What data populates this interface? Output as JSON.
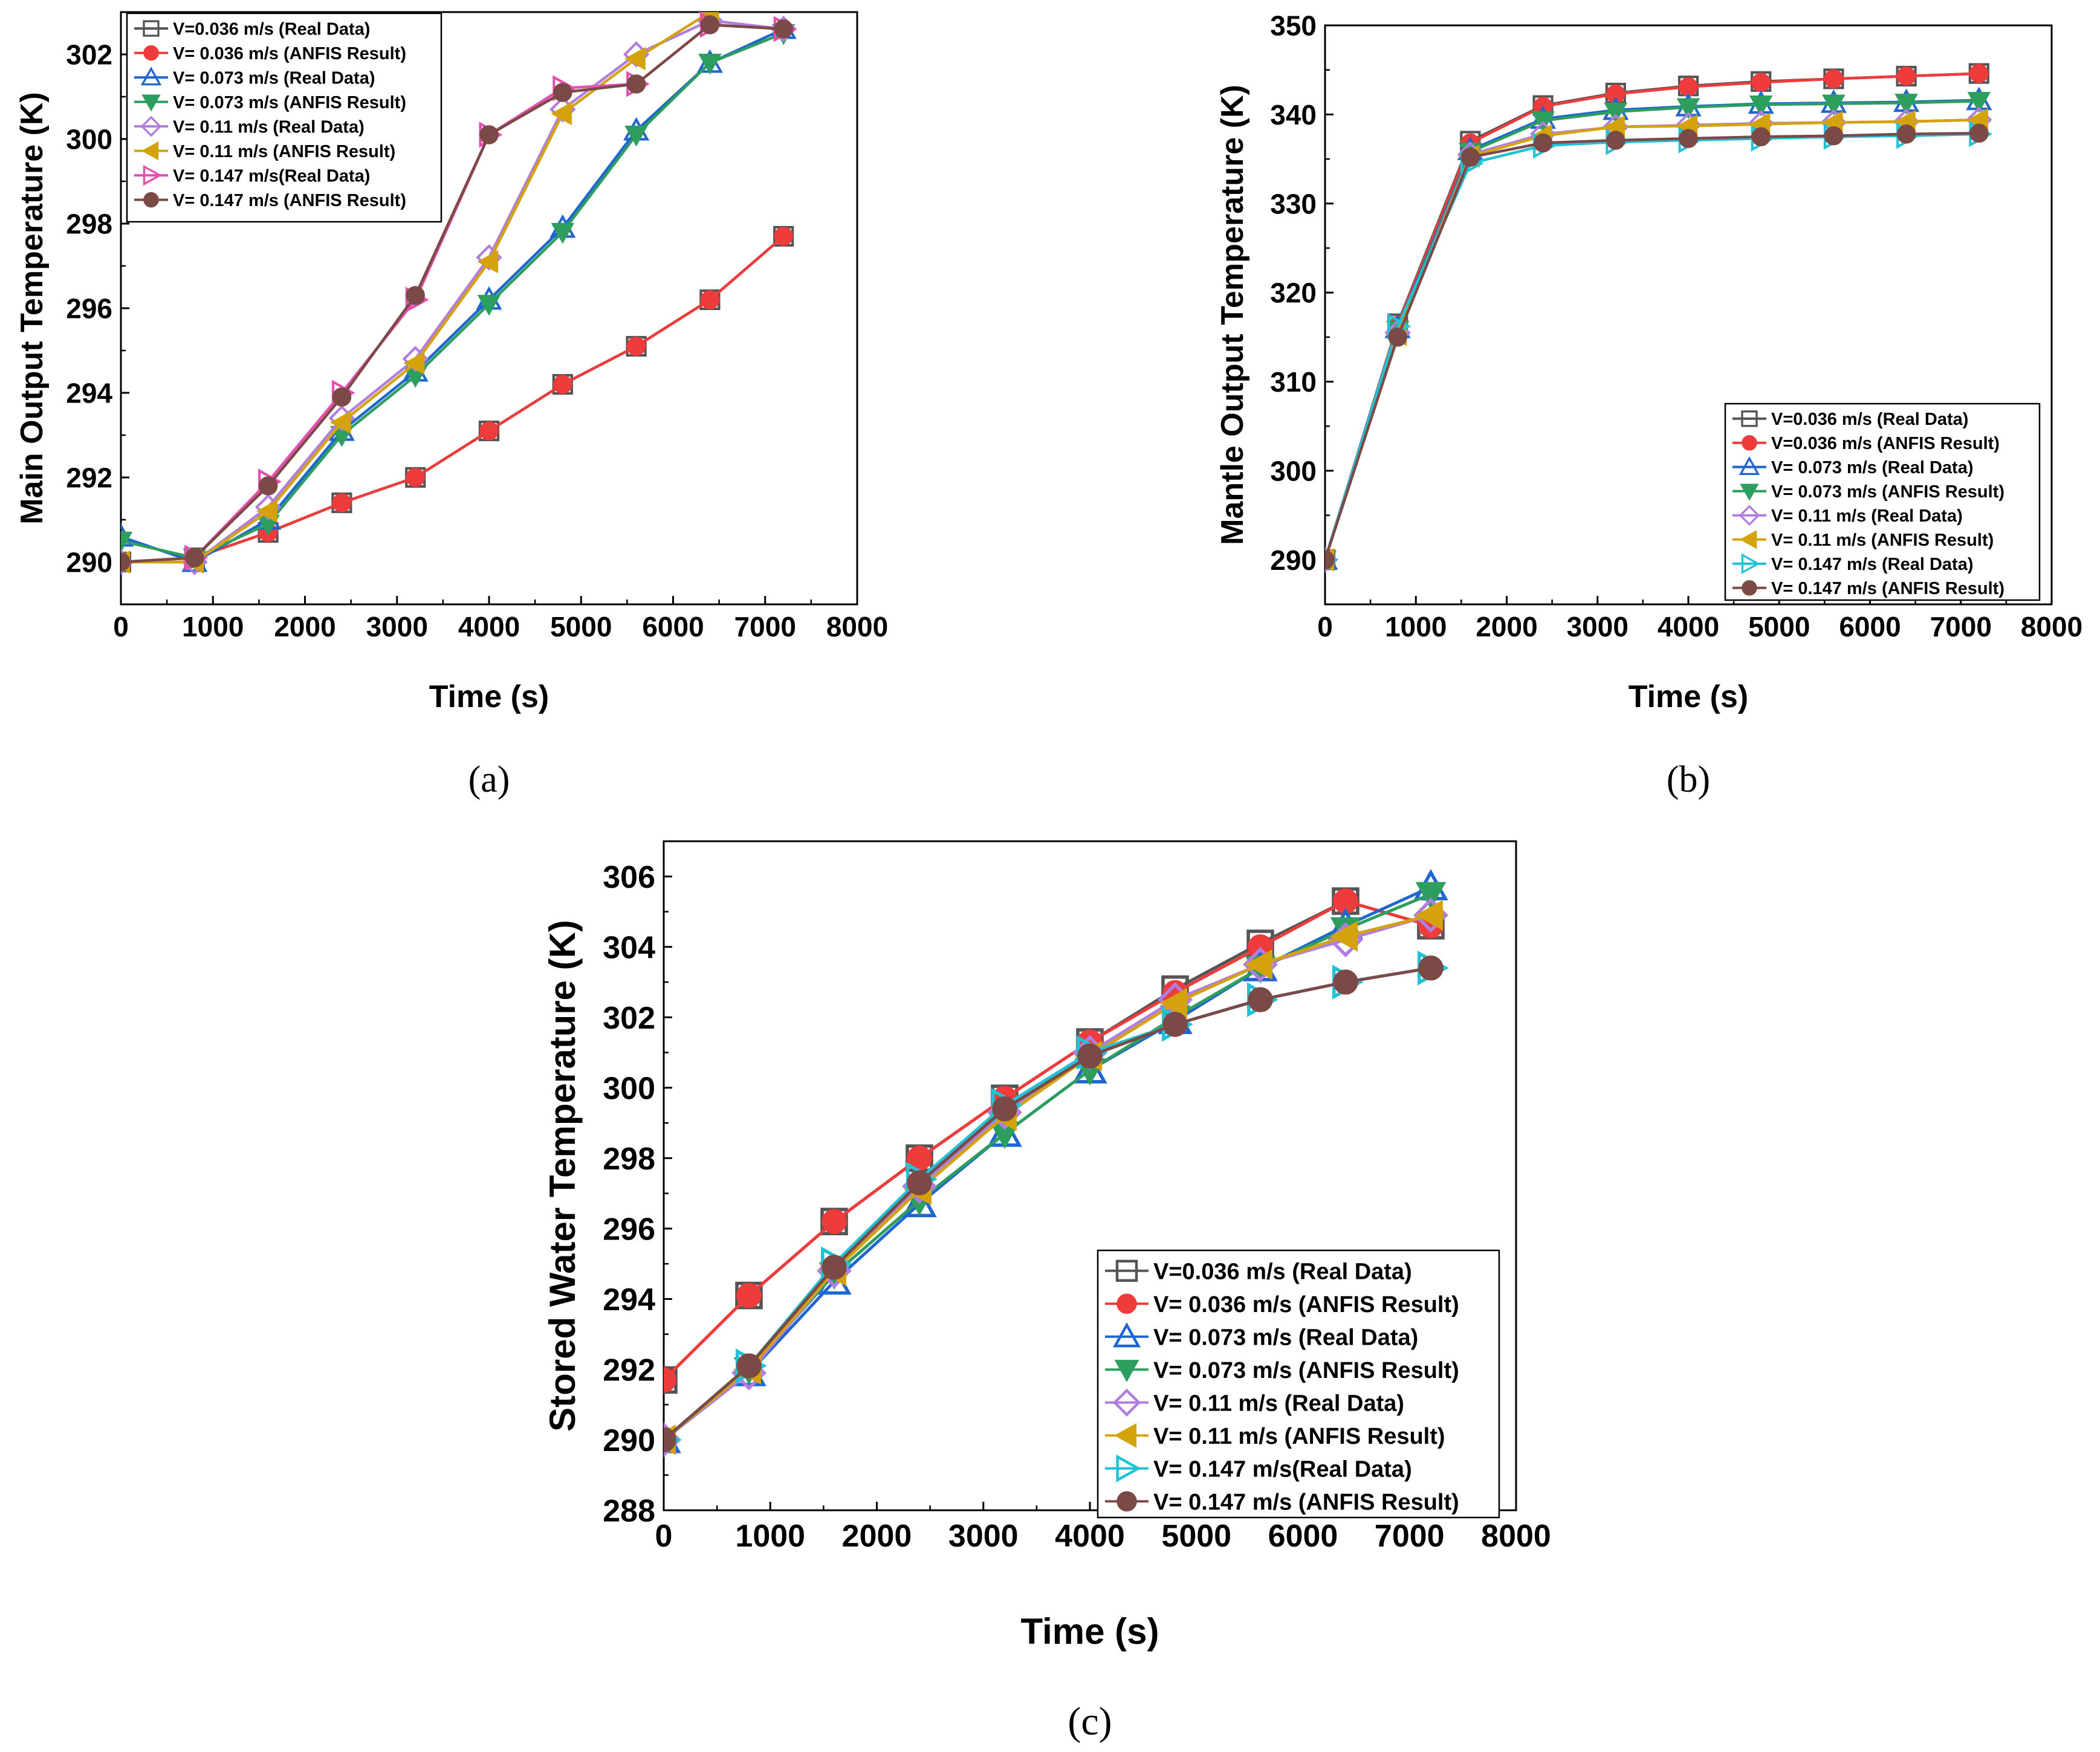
{
  "chart_data": [
    {
      "type": "line",
      "panel_label": "(a)",
      "xlabel": "Time (s)",
      "ylabel": "Main Output Temperature (K)",
      "xlim": [
        0,
        8000
      ],
      "ylim": [
        289,
        303
      ],
      "xticks": [
        "0",
        "1000",
        "2000",
        "3000",
        "4000",
        "5000",
        "6000",
        "7000",
        "8000"
      ],
      "yticks": [
        "290",
        "292",
        "294",
        "296",
        "298",
        "300",
        "302"
      ],
      "grid": false,
      "legend_placement": "top-left",
      "series": [
        {
          "name": "V=0.036 m/s (Real Data)",
          "color": "#555555",
          "marker": "square-open",
          "x": [
            0,
            800,
            1600,
            2400,
            3200,
            4000,
            4800,
            5600,
            6400,
            7200
          ],
          "y": [
            290.0,
            290.1,
            290.7,
            291.4,
            292.0,
            293.1,
            294.2,
            295.1,
            296.2,
            297.7
          ]
        },
        {
          "name": "V= 0.036 m/s (ANFIS Result)",
          "color": "#ee3b3b",
          "marker": "circle-filled",
          "x": [
            0,
            800,
            1600,
            2400,
            3200,
            4000,
            4800,
            5600,
            6400,
            7200
          ],
          "y": [
            290.0,
            290.1,
            290.7,
            291.4,
            292.0,
            293.1,
            294.2,
            295.1,
            296.2,
            297.7
          ]
        },
        {
          "name": "V= 0.073 m/s (Real Data)",
          "color": "#1f66d1",
          "marker": "triangle-up-open",
          "x": [
            0,
            800,
            1600,
            2400,
            3200,
            4000,
            4800,
            5600,
            6400,
            7200
          ],
          "y": [
            290.6,
            290.0,
            291.0,
            293.1,
            294.5,
            296.2,
            297.9,
            300.2,
            301.8,
            302.6
          ]
        },
        {
          "name": "V= 0.073 m/s (ANFIS Result)",
          "color": "#2e9e5e",
          "marker": "triangle-down-filled",
          "x": [
            0,
            800,
            1600,
            2400,
            3200,
            4000,
            4800,
            5600,
            6400,
            7200
          ],
          "y": [
            290.5,
            290.1,
            290.9,
            293.0,
            294.4,
            296.1,
            297.8,
            300.1,
            301.8,
            302.5
          ]
        },
        {
          "name": "V= 0.11 m/s (Real Data)",
          "color": "#b07ee0",
          "marker": "diamond-open",
          "x": [
            0,
            800,
            1600,
            2400,
            3200,
            4000,
            4800,
            5600,
            6400,
            7200
          ],
          "y": [
            290.0,
            290.0,
            291.3,
            293.4,
            294.8,
            297.2,
            300.7,
            302.0,
            302.8,
            302.6
          ]
        },
        {
          "name": "V= 0.11 m/s (ANFIS Result)",
          "color": "#d4a20a",
          "marker": "triangle-left-filled",
          "x": [
            0,
            800,
            1600,
            2400,
            3200,
            4000,
            4800,
            5600,
            6400
          ],
          "y": [
            290.0,
            290.0,
            291.2,
            293.3,
            294.7,
            297.1,
            300.6,
            301.9,
            303.0
          ]
        },
        {
          "name": "V= 0.147 m/s(Real Data)",
          "color": "#e64fb0",
          "marker": "triangle-right-open",
          "x": [
            0,
            800,
            1600,
            2400,
            3200,
            4000,
            4800,
            5600,
            6400,
            7200
          ],
          "y": [
            290.0,
            290.1,
            291.9,
            294.0,
            296.2,
            300.1,
            301.2,
            301.3,
            302.7,
            302.6
          ]
        },
        {
          "name": "V= 0.147 m/s (ANFIS Result)",
          "color": "#7b4a46",
          "marker": "circle-filled",
          "x": [
            0,
            800,
            1600,
            2400,
            3200,
            4000,
            4800,
            5600,
            6400,
            7200
          ],
          "y": [
            290.0,
            290.1,
            291.8,
            293.9,
            296.3,
            300.1,
            301.1,
            301.3,
            302.7,
            302.6
          ]
        }
      ]
    },
    {
      "type": "line",
      "panel_label": "(b)",
      "xlabel": "Time (s)",
      "ylabel": "Mantle Output Temperature (K)",
      "xlim": [
        0,
        8000
      ],
      "ylim": [
        285,
        350
      ],
      "xticks": [
        "0",
        "1000",
        "2000",
        "3000",
        "4000",
        "5000",
        "6000",
        "7000",
        "8000"
      ],
      "yticks": [
        "290",
        "300",
        "310",
        "320",
        "330",
        "340",
        "350"
      ],
      "grid": false,
      "legend_placement": "bottom-right",
      "series": [
        {
          "name": "V=0.036 m/s (Real Data)",
          "color": "#555555",
          "marker": "square-open",
          "x": [
            0,
            800,
            1600,
            2400,
            3200,
            4000,
            4800,
            5600,
            6400,
            7200
          ],
          "y": [
            290.0,
            316.5,
            337.0,
            341.0,
            342.4,
            343.2,
            343.7,
            344.0,
            344.3,
            344.6
          ]
        },
        {
          "name": "V=0.036 m/s (ANFIS Result)",
          "color": "#ee3b3b",
          "marker": "circle-filled",
          "x": [
            0,
            800,
            1600,
            2400,
            3200,
            4000,
            4800,
            5600,
            6400,
            7200
          ],
          "y": [
            290.0,
            316.3,
            336.8,
            340.9,
            342.3,
            343.1,
            343.6,
            344.0,
            344.3,
            344.6
          ]
        },
        {
          "name": "V= 0.073 m/s (Real Data)",
          "color": "#1f66d1",
          "marker": "triangle-up-open",
          "x": [
            0,
            800,
            1600,
            2400,
            3200,
            4000,
            4800,
            5600,
            6400,
            7200
          ],
          "y": [
            290.0,
            316.0,
            336.0,
            339.5,
            340.5,
            340.9,
            341.2,
            341.3,
            341.4,
            341.6
          ]
        },
        {
          "name": "V= 0.073 m/s (ANFIS Result)",
          "color": "#2e9e5e",
          "marker": "triangle-down-filled",
          "x": [
            0,
            800,
            1600,
            2400,
            3200,
            4000,
            4800,
            5600,
            6400,
            7200
          ],
          "y": [
            290.0,
            315.8,
            335.8,
            339.3,
            340.3,
            340.8,
            341.1,
            341.2,
            341.3,
            341.5
          ]
        },
        {
          "name": "V= 0.11 m/s (Real Data)",
          "color": "#b07ee0",
          "marker": "diamond-open",
          "x": [
            0,
            800,
            1600,
            2400,
            3200,
            4000,
            4800,
            5600,
            6400,
            7200
          ],
          "y": [
            290.0,
            315.5,
            335.5,
            337.8,
            338.6,
            338.8,
            339.0,
            339.1,
            339.2,
            339.4
          ]
        },
        {
          "name": "V= 0.11 m/s (ANFIS Result)",
          "color": "#d4a20a",
          "marker": "triangle-left-filled",
          "x": [
            0,
            800,
            1600,
            2400,
            3200,
            4000,
            4800,
            5600,
            6400,
            7200
          ],
          "y": [
            290.0,
            315.3,
            335.3,
            337.6,
            338.6,
            338.7,
            338.9,
            339.1,
            339.2,
            339.4
          ]
        },
        {
          "name": "V= 0.147 m/s (Real Data)",
          "color": "#22c2d6",
          "marker": "triangle-right-open",
          "x": [
            0,
            800,
            1600,
            2400,
            3200,
            4000,
            4800,
            5600,
            6400,
            7200
          ],
          "y": [
            290.0,
            316.2,
            334.5,
            336.5,
            336.9,
            337.1,
            337.3,
            337.5,
            337.6,
            337.8
          ]
        },
        {
          "name": "V= 0.147 m/s (ANFIS Result)",
          "color": "#7b4a46",
          "marker": "circle-filled",
          "x": [
            0,
            800,
            1600,
            2400,
            3200,
            4000,
            4800,
            5600,
            6400,
            7200
          ],
          "y": [
            290.0,
            315.0,
            335.2,
            336.8,
            337.1,
            337.3,
            337.5,
            337.6,
            337.8,
            337.9
          ]
        }
      ]
    },
    {
      "type": "line",
      "panel_label": "(c)",
      "xlabel": "Time (s)",
      "ylabel": "Stored Water Temperature (K)",
      "xlim": [
        0,
        8000
      ],
      "ylim": [
        288,
        307
      ],
      "xticks": [
        "0",
        "1000",
        "2000",
        "3000",
        "4000",
        "5000",
        "6000",
        "7000",
        "8000"
      ],
      "yticks": [
        "288",
        "290",
        "292",
        "294",
        "296",
        "298",
        "300",
        "302",
        "304",
        "306"
      ],
      "grid": false,
      "legend_placement": "bottom-right",
      "series": [
        {
          "name": "V=0.036 m/s (Real Data)",
          "color": "#555555",
          "marker": "square-open",
          "x": [
            0,
            800,
            1600,
            2400,
            3200,
            4000,
            4800,
            5600,
            6400,
            7200
          ],
          "y": [
            291.7,
            294.1,
            296.2,
            298.0,
            299.7,
            301.3,
            302.8,
            304.1,
            305.3,
            304.6
          ]
        },
        {
          "name": "V= 0.036 m/s (ANFIS Result)",
          "color": "#ee3b3b",
          "marker": "circle-filled",
          "x": [
            0,
            800,
            1600,
            2400,
            3200,
            4000,
            4800,
            5600,
            6400,
            7200
          ],
          "y": [
            291.7,
            294.1,
            296.2,
            298.0,
            299.7,
            301.3,
            302.7,
            304.0,
            305.3,
            304.6
          ]
        },
        {
          "name": "V= 0.073 m/s (Real Data)",
          "color": "#1f66d1",
          "marker": "triangle-up-open",
          "x": [
            0,
            800,
            1600,
            2400,
            3200,
            4000,
            4800,
            5600,
            6400,
            7200
          ],
          "y": [
            290.0,
            291.9,
            294.5,
            296.7,
            298.7,
            300.5,
            301.9,
            303.4,
            304.6,
            305.7
          ]
        },
        {
          "name": "V= 0.073 m/s (ANFIS Result)",
          "color": "#2e9e5e",
          "marker": "triangle-down-filled",
          "x": [
            0,
            800,
            1600,
            2400,
            3200,
            4000,
            4800,
            5600,
            6400,
            7200
          ],
          "y": [
            290.0,
            292.0,
            294.7,
            296.8,
            298.7,
            300.5,
            302.0,
            303.4,
            304.5,
            305.5
          ]
        },
        {
          "name": "V= 0.11 m/s (Real Data)",
          "color": "#b07ee0",
          "marker": "diamond-open",
          "x": [
            0,
            800,
            1600,
            2400,
            3200,
            4000,
            4800,
            5600,
            6400,
            7200
          ],
          "y": [
            290.0,
            291.9,
            294.8,
            297.2,
            299.3,
            301.0,
            302.5,
            303.5,
            304.2,
            304.9
          ]
        },
        {
          "name": "V= 0.11 m/s (ANFIS Result)",
          "color": "#d4a20a",
          "marker": "triangle-left-filled",
          "x": [
            0,
            800,
            1600,
            2400,
            3200,
            4000,
            4800,
            5600,
            6400,
            7200
          ],
          "y": [
            290.0,
            292.0,
            294.8,
            297.1,
            299.2,
            300.9,
            302.4,
            303.5,
            304.3,
            304.9
          ]
        },
        {
          "name": "V= 0.147 m/s(Real Data)",
          "color": "#22c2d6",
          "marker": "triangle-right-open",
          "x": [
            0,
            800,
            1600,
            2400,
            3200,
            4000,
            4800,
            5600,
            6400,
            7200
          ],
          "y": [
            290.0,
            292.1,
            295.0,
            297.4,
            299.5,
            301.0,
            301.8,
            302.5,
            303.0,
            303.4
          ]
        },
        {
          "name": "V= 0.147 m/s (ANFIS Result)",
          "color": "#7b4a46",
          "marker": "circle-filled",
          "x": [
            0,
            800,
            1600,
            2400,
            3200,
            4000,
            4800,
            5600,
            6400,
            7200
          ],
          "y": [
            290.0,
            292.1,
            294.9,
            297.3,
            299.4,
            300.9,
            301.8,
            302.5,
            303.0,
            303.4
          ]
        }
      ]
    }
  ]
}
